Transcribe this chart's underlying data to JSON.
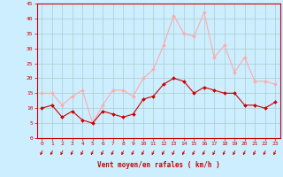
{
  "x": [
    0,
    1,
    2,
    3,
    4,
    5,
    6,
    7,
    8,
    9,
    10,
    11,
    12,
    13,
    14,
    15,
    16,
    17,
    18,
    19,
    20,
    21,
    22,
    23
  ],
  "wind_avg": [
    10,
    11,
    7,
    9,
    6,
    5,
    9,
    8,
    7,
    8,
    13,
    14,
    18,
    20,
    19,
    15,
    17,
    16,
    15,
    15,
    11,
    11,
    10,
    12
  ],
  "wind_gust": [
    15,
    15,
    11,
    14,
    16,
    5,
    11,
    16,
    16,
    14,
    20,
    23,
    31,
    41,
    35,
    34,
    42,
    27,
    31,
    22,
    27,
    19,
    19,
    18
  ],
  "avg_color": "#cc0000",
  "gust_color": "#ffaaaa",
  "bg_color": "#cceeff",
  "grid_color": "#aacccc",
  "axis_color": "#cc0000",
  "xlabel": "Vent moyen/en rafales ( km/h )",
  "tick_color": "#cc0000",
  "ylim": [
    0,
    45
  ],
  "yticks": [
    0,
    5,
    10,
    15,
    20,
    25,
    30,
    35,
    40,
    45
  ],
  "xticks": [
    0,
    1,
    2,
    3,
    4,
    5,
    6,
    7,
    8,
    9,
    10,
    11,
    12,
    13,
    14,
    15,
    16,
    17,
    18,
    19,
    20,
    21,
    22,
    23
  ]
}
